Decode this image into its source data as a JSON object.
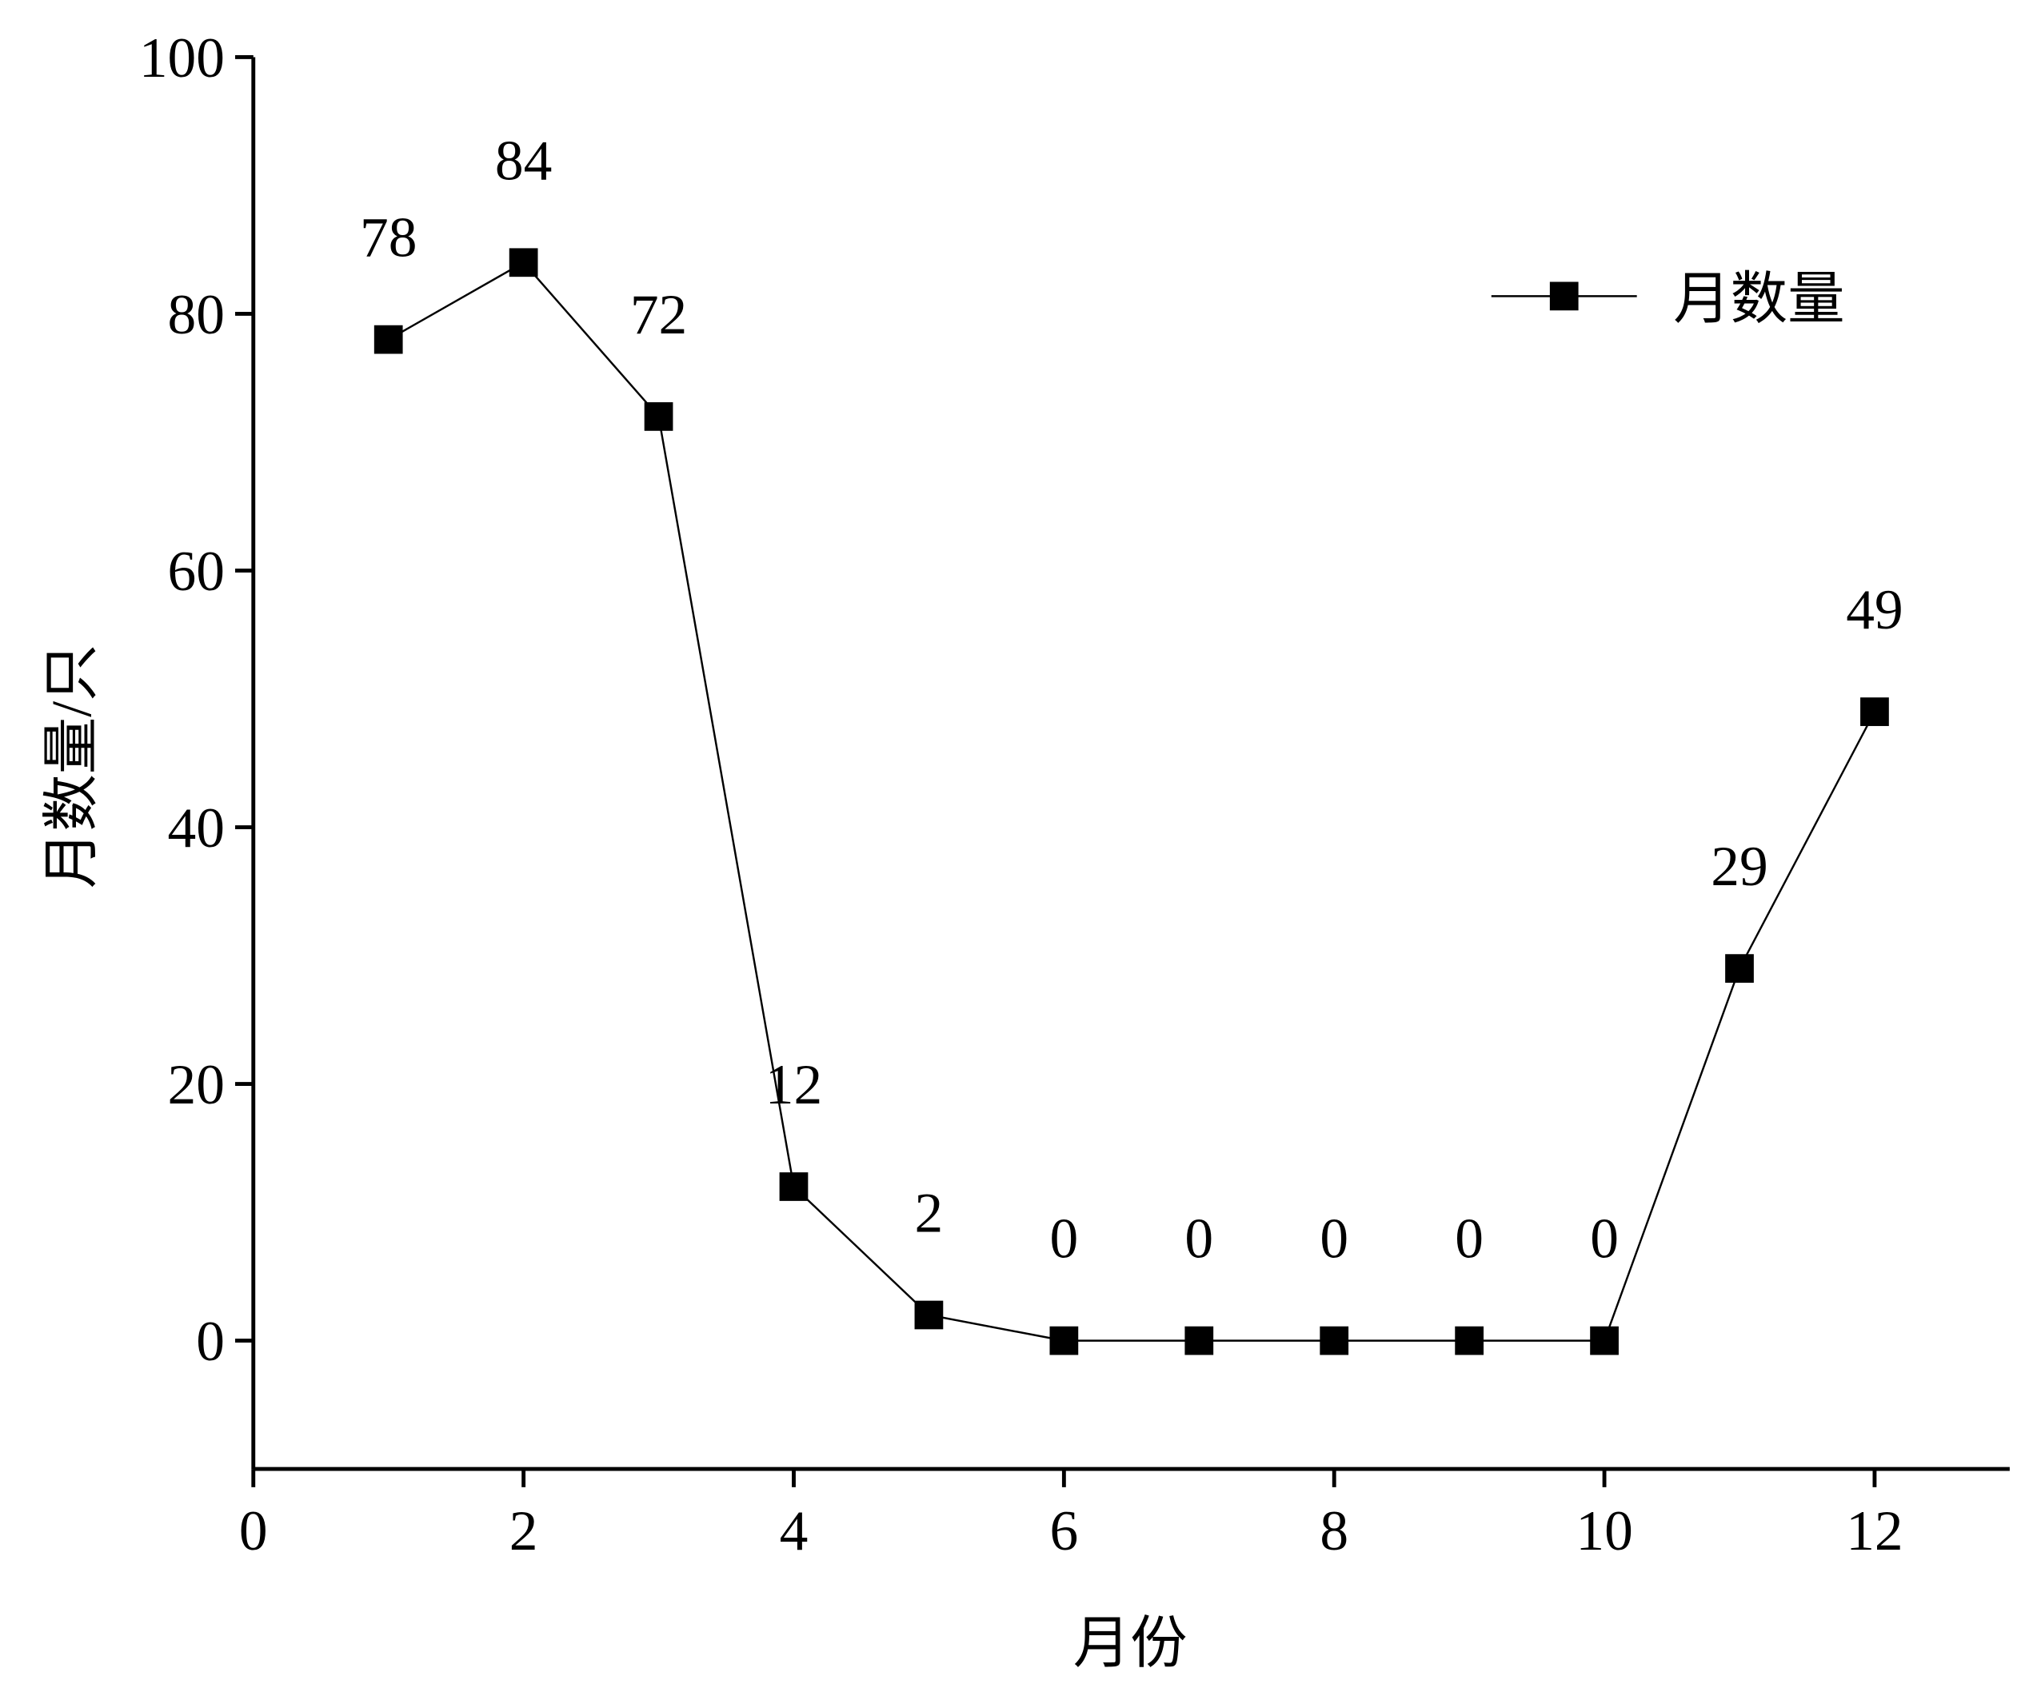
{
  "chart_data": {
    "type": "line",
    "x_label": "月份",
    "y_label": "月数量/只",
    "x": [
      1,
      2,
      3,
      4,
      5,
      6,
      7,
      8,
      9,
      10,
      11,
      12
    ],
    "series": [
      {
        "name": "月数量",
        "color": "#000000",
        "values": [
          78,
          84,
          72,
          12,
          2,
          0,
          0,
          0,
          0,
          0,
          29,
          49
        ]
      }
    ],
    "xlim": [
      0,
      13
    ],
    "xticks": [
      0,
      2,
      4,
      6,
      8,
      10,
      12
    ],
    "ylim": [
      -10,
      100
    ],
    "yticks": [
      0,
      20,
      40,
      60,
      80,
      100
    ],
    "grid": false,
    "legend": "upper right",
    "data_labels": true
  }
}
